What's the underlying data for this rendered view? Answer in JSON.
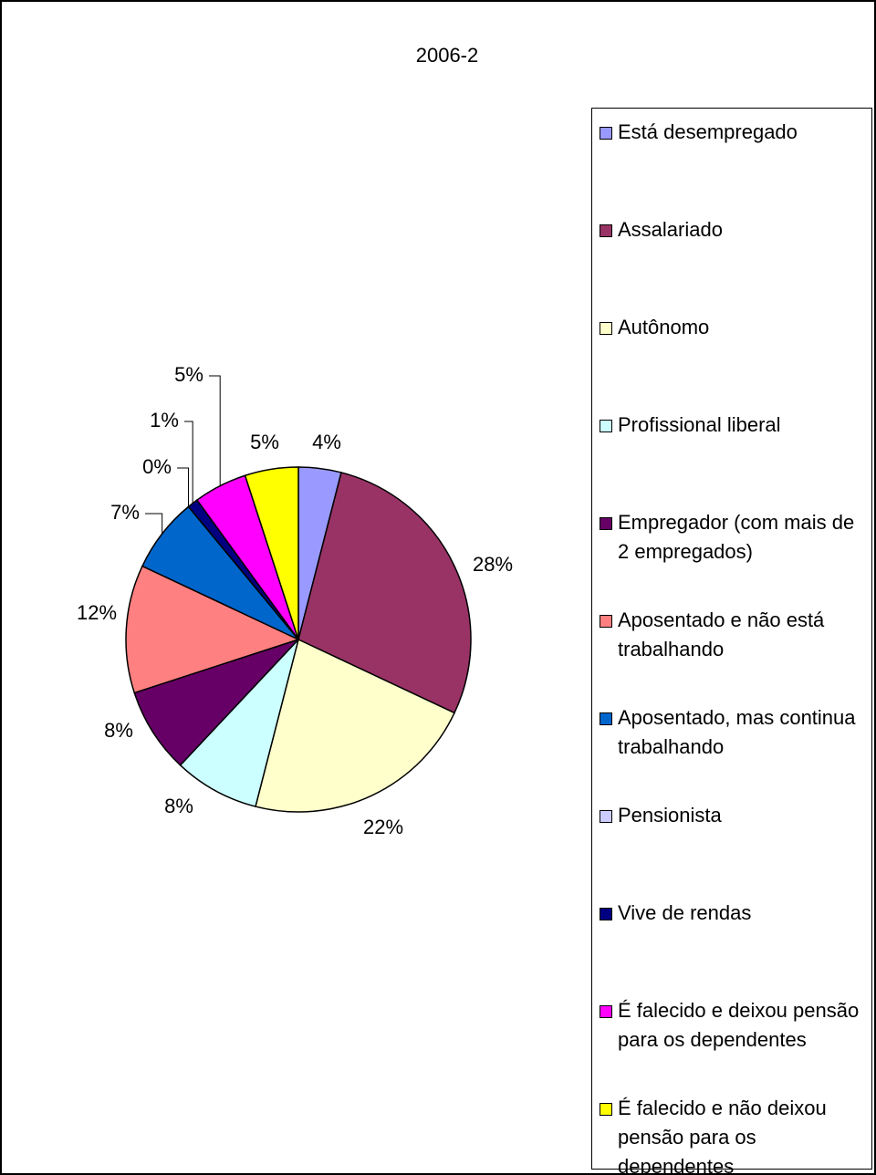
{
  "chart_data": {
    "type": "pie",
    "title": "2006-2",
    "categories": [
      "Está desempregado",
      "Assalariado",
      "Autônomo",
      "Profissional liberal",
      "Empregador (com mais de 2 empregados)",
      "Aposentado e não está trabalhando",
      "Aposentado, mas continua trabalhando",
      "Pensionista",
      "Vive de rendas",
      "É falecido e deixou pensão para os dependentes",
      "É falecido e não deixou pensão para os dependentes"
    ],
    "values": [
      4,
      28,
      22,
      8,
      8,
      12,
      7,
      0,
      1,
      5,
      5
    ],
    "value_labels": [
      "4%",
      "28%",
      "22%",
      "8%",
      "8%",
      "12%",
      "7%",
      "0%",
      "1%",
      "5%",
      "5%"
    ],
    "colors": [
      "#9999ff",
      "#993366",
      "#ffffcc",
      "#ccffff",
      "#660066",
      "#ff8080",
      "#0066cc",
      "#ccccff",
      "#000080",
      "#ff00ff",
      "#ffff00"
    ],
    "legend": "right"
  }
}
